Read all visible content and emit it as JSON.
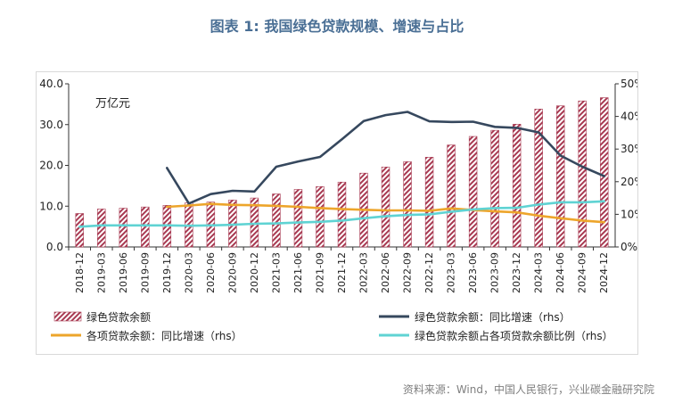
{
  "title": "图表 1:  我国绿色贷款规模、增速与占比",
  "source": "资料来源：Wind，中国人民银行，兴业碳金融研究院",
  "colors": {
    "bar": "#a83a52",
    "loan_growth": "#36485e",
    "all_loan_growth": "#eda52b",
    "share": "#5fd3d3",
    "title": "#4a6f95"
  },
  "chart_data": {
    "type": "bar",
    "unit_label": "万亿元",
    "categories": [
      "2018-12",
      "2019-03",
      "2019-06",
      "2019-09",
      "2019-12",
      "2020-03",
      "2020-06",
      "2020-09",
      "2020-12",
      "2021-03",
      "2021-06",
      "2021-09",
      "2021-12",
      "2022-03",
      "2022-06",
      "2022-09",
      "2022-12",
      "2023-03",
      "2023-06",
      "2023-09",
      "2023-12",
      "2024-03",
      "2024-06",
      "2024-09",
      "2024-12"
    ],
    "ylim": [
      0,
      40
    ],
    "y_ticks": [
      "40.0",
      "30.0",
      "20.0",
      "10.0",
      "0.0"
    ],
    "y2lim": [
      0,
      50
    ],
    "y2_ticks": [
      "50%",
      "40%",
      "30%",
      "20%",
      "10%",
      "0%"
    ],
    "series": [
      {
        "name": "绿色贷款余额",
        "type": "bar",
        "axis": "left",
        "values": [
          8.2,
          9.3,
          9.5,
          9.8,
          10.2,
          10.8,
          11.0,
          11.5,
          12.0,
          13.0,
          14.1,
          14.8,
          15.9,
          18.1,
          19.6,
          20.9,
          22.0,
          25.0,
          27.1,
          28.6,
          30.1,
          33.8,
          34.6,
          35.8,
          36.6
        ]
      },
      {
        "name": "绿色贷款余额：同比增速（rhs）",
        "type": "line",
        "axis": "right",
        "values": [
          null,
          null,
          null,
          null,
          24.2,
          13.3,
          16.2,
          17.2,
          17.0,
          24.6,
          26.2,
          27.6,
          33.0,
          38.6,
          40.4,
          41.4,
          38.5,
          38.3,
          38.4,
          36.8,
          36.5,
          35.1,
          28.0,
          24.6,
          21.7
        ]
      },
      {
        "name": "各项贷款余额：同比增速（rhs）",
        "type": "line",
        "axis": "right",
        "values": [
          null,
          null,
          null,
          null,
          12.3,
          12.7,
          13.2,
          12.9,
          12.8,
          12.6,
          12.3,
          11.9,
          11.6,
          11.4,
          11.2,
          11.2,
          11.1,
          11.8,
          11.3,
          10.9,
          10.6,
          9.6,
          8.8,
          8.1,
          7.6
        ]
      },
      {
        "name": "绿色贷款余额占各项贷款余额比例（rhs）",
        "type": "line",
        "axis": "right",
        "values": [
          6.2,
          6.6,
          6.6,
          6.6,
          6.6,
          6.5,
          6.6,
          6.8,
          7.1,
          7.2,
          7.5,
          7.7,
          8.1,
          8.8,
          9.4,
          9.8,
          10.0,
          10.8,
          11.5,
          11.9,
          12.0,
          13.0,
          13.7,
          13.7,
          14.0
        ]
      }
    ]
  }
}
